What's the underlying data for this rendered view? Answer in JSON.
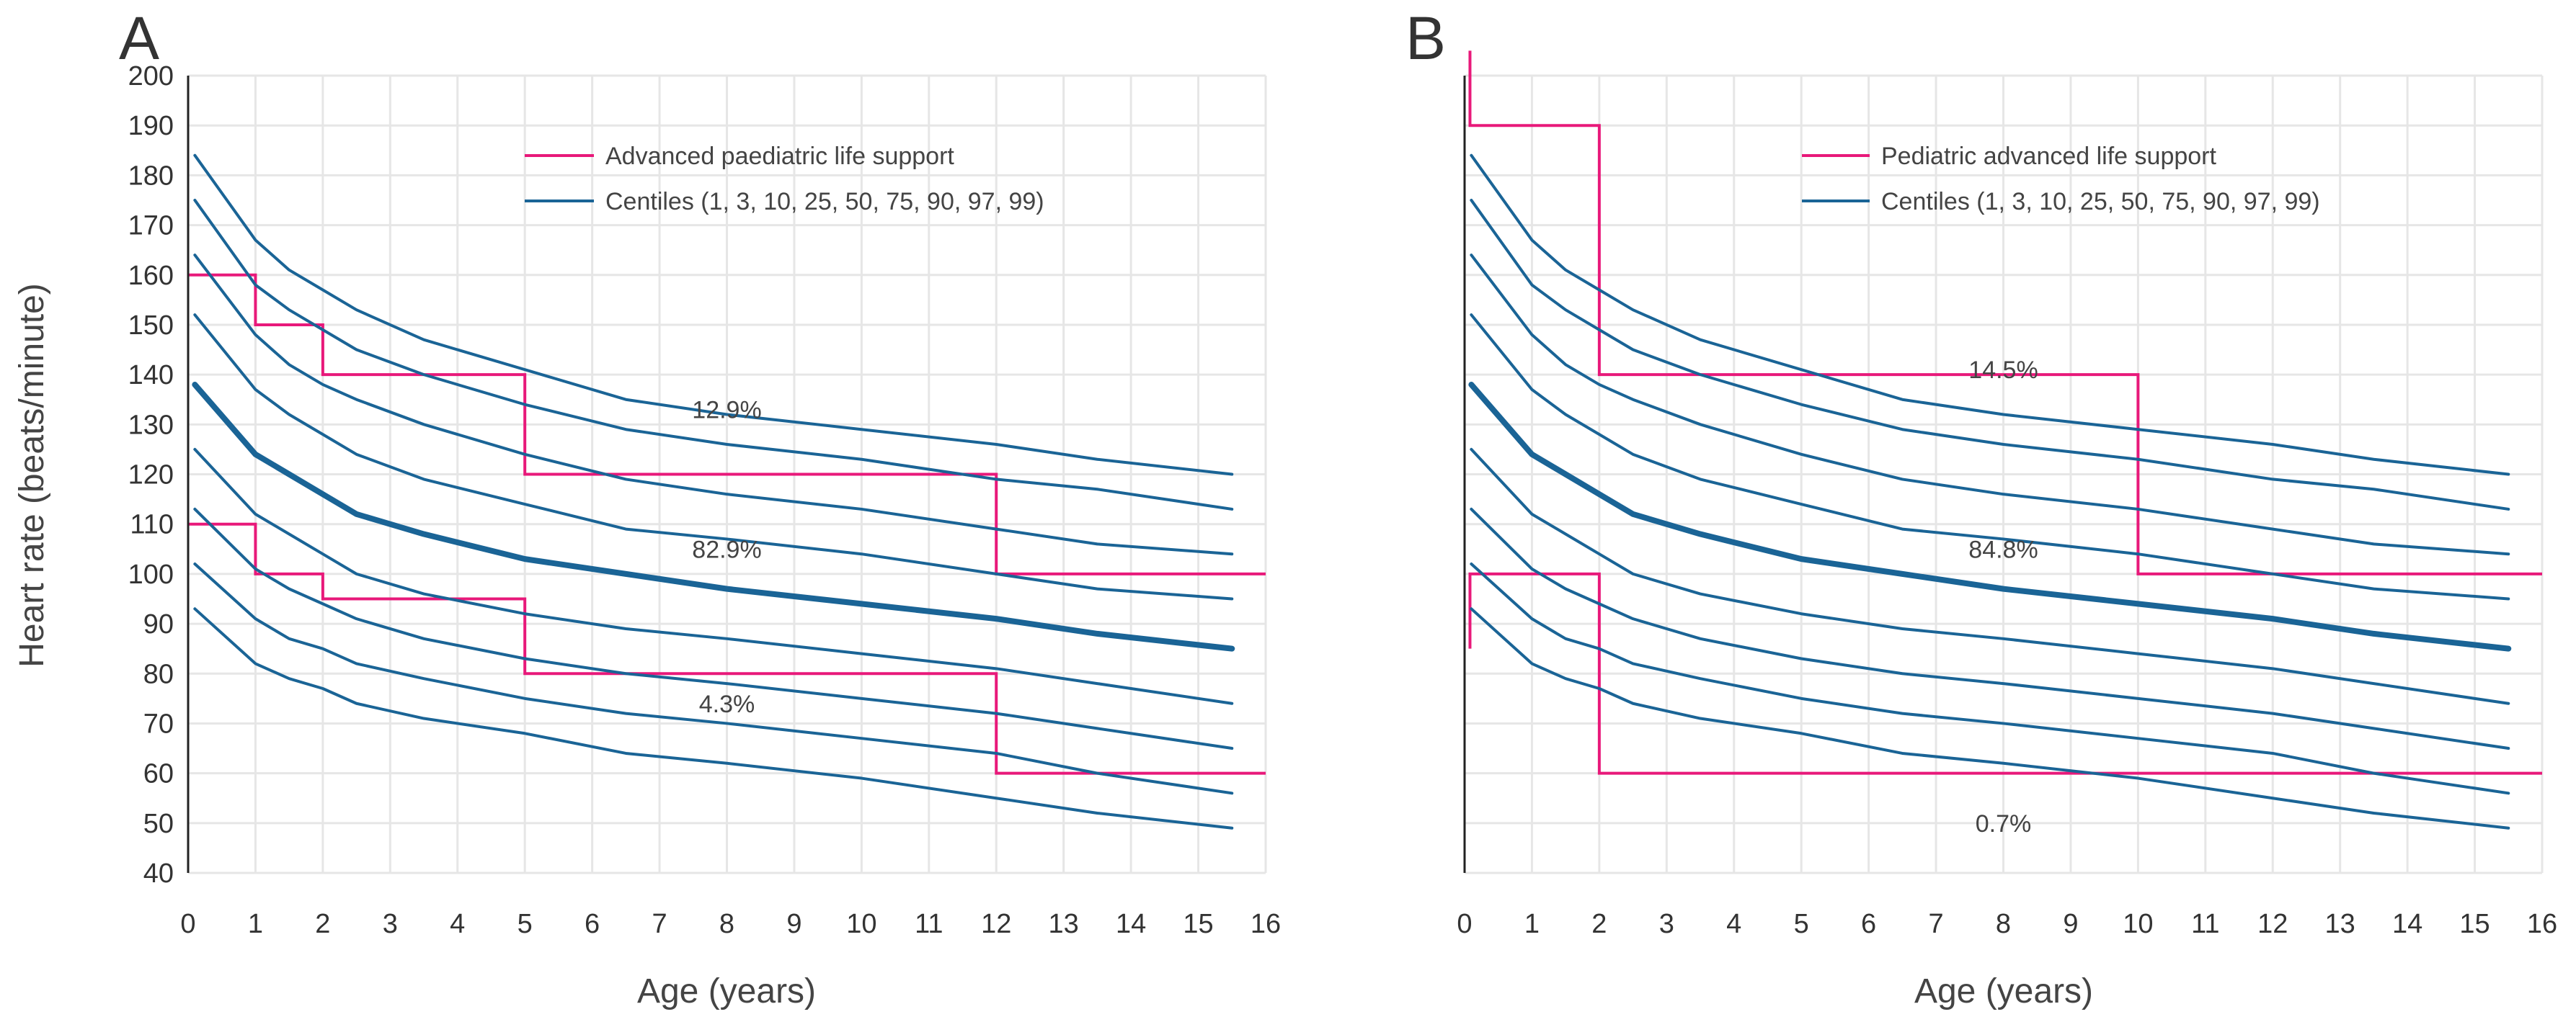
{
  "chart_data": [
    {
      "type": "line",
      "panel_label": "A",
      "xlabel": "Age (years)",
      "ylabel": "Heart rate (beats/minute)",
      "xlim": [
        0,
        16
      ],
      "ylim": [
        40,
        200
      ],
      "x_ticks": [
        0,
        1,
        2,
        3,
        4,
        5,
        6,
        7,
        8,
        9,
        10,
        11,
        12,
        13,
        14,
        15,
        16
      ],
      "y_ticks": [
        40,
        50,
        60,
        70,
        80,
        90,
        100,
        110,
        120,
        130,
        140,
        150,
        160,
        170,
        180,
        190,
        200
      ],
      "grid": true,
      "legend_position": "top-center",
      "legend": [
        {
          "label": "Advanced paediatric life support",
          "color": "#e8197a"
        },
        {
          "label": "Centiles (1, 3, 10, 25, 50, 75, 90, 97, 99)",
          "color": "#1a6496"
        }
      ],
      "centile_x": [
        0.1,
        1,
        1.5,
        2,
        2.5,
        3.5,
        5,
        6.5,
        8,
        10,
        12,
        13.5,
        15.5
      ],
      "centiles": [
        {
          "name": "99",
          "values": [
            184,
            167,
            161,
            157,
            153,
            147,
            141,
            135,
            132,
            129,
            126,
            123,
            120
          ]
        },
        {
          "name": "97",
          "values": [
            175,
            158,
            153,
            149,
            145,
            140,
            134,
            129,
            126,
            123,
            119,
            117,
            113
          ]
        },
        {
          "name": "90",
          "values": [
            164,
            148,
            142,
            138,
            135,
            130,
            124,
            119,
            116,
            113,
            109,
            106,
            104
          ]
        },
        {
          "name": "75",
          "values": [
            152,
            137,
            132,
            128,
            124,
            119,
            114,
            109,
            107,
            104,
            100,
            97,
            95
          ]
        },
        {
          "name": "50",
          "values": [
            138,
            124,
            120,
            116,
            112,
            108,
            103,
            100,
            97,
            94,
            91,
            88,
            85
          ]
        },
        {
          "name": "25",
          "values": [
            125,
            112,
            108,
            104,
            100,
            96,
            92,
            89,
            87,
            84,
            81,
            78,
            74
          ]
        },
        {
          "name": "10",
          "values": [
            113,
            101,
            97,
            94,
            91,
            87,
            83,
            80,
            78,
            75,
            72,
            69,
            65
          ]
        },
        {
          "name": "3",
          "values": [
            102,
            91,
            87,
            85,
            82,
            79,
            75,
            72,
            70,
            67,
            64,
            60,
            56
          ]
        },
        {
          "name": "1",
          "values": [
            93,
            82,
            79,
            77,
            74,
            71,
            68,
            64,
            62,
            59,
            55,
            52,
            49
          ]
        }
      ],
      "guideline_series": [
        {
          "name": "Advanced paediatric life support upper limit",
          "x": [
            0,
            1,
            1,
            2,
            2,
            5,
            5,
            12,
            12,
            16
          ],
          "y": [
            160,
            160,
            150,
            150,
            140,
            140,
            120,
            120,
            100,
            100
          ]
        },
        {
          "name": "Advanced paediatric life support lower limit",
          "x": [
            0,
            1,
            1,
            2,
            2,
            5,
            5,
            12,
            12,
            16
          ],
          "y": [
            110,
            110,
            100,
            100,
            95,
            95,
            80,
            80,
            60,
            60
          ]
        }
      ],
      "annotations": [
        {
          "text": "12.9%",
          "x": 8,
          "y": 133
        },
        {
          "text": "82.9%",
          "x": 8,
          "y": 105
        },
        {
          "text": "4.3%",
          "x": 8,
          "y": 74
        }
      ]
    },
    {
      "type": "line",
      "panel_label": "B",
      "xlabel": "Age (years)",
      "ylabel": "",
      "xlim": [
        0,
        16
      ],
      "ylim": [
        40,
        200
      ],
      "x_ticks": [
        0,
        1,
        2,
        3,
        4,
        5,
        6,
        7,
        8,
        9,
        10,
        11,
        12,
        13,
        14,
        15,
        16
      ],
      "y_ticks": [],
      "grid": true,
      "legend_position": "top-center",
      "legend": [
        {
          "label": "Pediatric advanced life support",
          "color": "#e8197a"
        },
        {
          "label": "Centiles (1, 3, 10, 25, 50, 75, 90, 97, 99)",
          "color": "#1a6496"
        }
      ],
      "centile_x": [
        0.1,
        1,
        1.5,
        2,
        2.5,
        3.5,
        5,
        6.5,
        8,
        10,
        12,
        13.5,
        15.5
      ],
      "centiles": [
        {
          "name": "99",
          "values": [
            184,
            167,
            161,
            157,
            153,
            147,
            141,
            135,
            132,
            129,
            126,
            123,
            120
          ]
        },
        {
          "name": "97",
          "values": [
            175,
            158,
            153,
            149,
            145,
            140,
            134,
            129,
            126,
            123,
            119,
            117,
            113
          ]
        },
        {
          "name": "90",
          "values": [
            164,
            148,
            142,
            138,
            135,
            130,
            124,
            119,
            116,
            113,
            109,
            106,
            104
          ]
        },
        {
          "name": "75",
          "values": [
            152,
            137,
            132,
            128,
            124,
            119,
            114,
            109,
            107,
            104,
            100,
            97,
            95
          ]
        },
        {
          "name": "50",
          "values": [
            138,
            124,
            120,
            116,
            112,
            108,
            103,
            100,
            97,
            94,
            91,
            88,
            85
          ]
        },
        {
          "name": "25",
          "values": [
            125,
            112,
            108,
            104,
            100,
            96,
            92,
            89,
            87,
            84,
            81,
            78,
            74
          ]
        },
        {
          "name": "10",
          "values": [
            113,
            101,
            97,
            94,
            91,
            87,
            83,
            80,
            78,
            75,
            72,
            69,
            65
          ]
        },
        {
          "name": "3",
          "values": [
            102,
            91,
            87,
            85,
            82,
            79,
            75,
            72,
            70,
            67,
            64,
            60,
            56
          ]
        },
        {
          "name": "1",
          "values": [
            93,
            82,
            79,
            77,
            74,
            71,
            68,
            64,
            62,
            59,
            55,
            52,
            49
          ]
        }
      ],
      "guideline_series": [
        {
          "name": "Pediatric advanced life support upper limit",
          "x": [
            0.08,
            0.08,
            2,
            2,
            10,
            10,
            16
          ],
          "y": [
            205,
            190,
            190,
            140,
            140,
            100,
            100
          ]
        },
        {
          "name": "Pediatric advanced life support lower limit",
          "x": [
            0.08,
            0.08,
            2,
            2,
            16
          ],
          "y": [
            85,
            100,
            100,
            60,
            60
          ]
        }
      ],
      "annotations": [
        {
          "text": "14.5%",
          "x": 8,
          "y": 141
        },
        {
          "text": "84.8%",
          "x": 8,
          "y": 105
        },
        {
          "text": "0.7%",
          "x": 8,
          "y": 50
        }
      ]
    }
  ]
}
